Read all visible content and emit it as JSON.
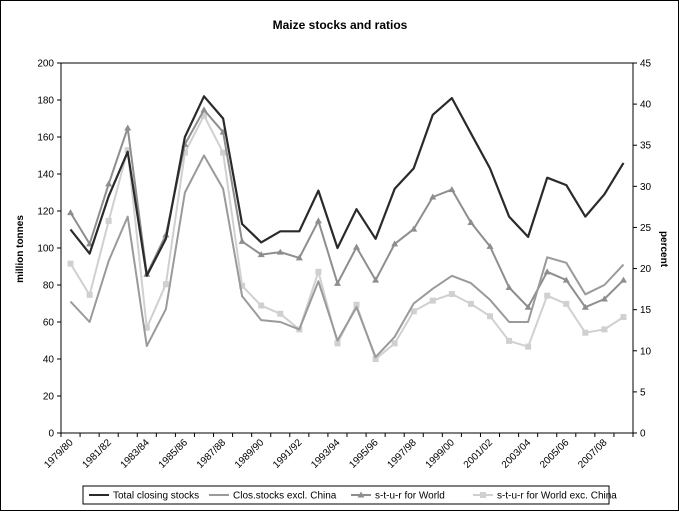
{
  "chart_data": {
    "type": "line",
    "title": "Maize stocks and ratios",
    "ylabel": "million tonnes",
    "y2label": "percent",
    "ylim": [
      0,
      200
    ],
    "y2lim": [
      0,
      45
    ],
    "yticks": [
      0,
      20,
      40,
      60,
      80,
      100,
      120,
      140,
      160,
      180,
      200
    ],
    "y2ticks": [
      0,
      5,
      10,
      15,
      20,
      25,
      30,
      35,
      40,
      45
    ],
    "grid": false,
    "legend_position": "bottom",
    "colors": {
      "total": "#2a2a2a",
      "excl": "#9a9a9a",
      "stur": "#8e8e8e",
      "stur_exc": "#d0d0d0"
    },
    "x": [
      "1979/80",
      "1980/81",
      "1981/82",
      "1982/83",
      "1983/84",
      "1984/85",
      "1985/86",
      "1986/87",
      "1987/88",
      "1988/89",
      "1989/90",
      "1990/91",
      "1991/92",
      "1992/93",
      "1993/94",
      "1994/95",
      "1995/96",
      "1996/97",
      "1997/98",
      "1998/99",
      "1999/00",
      "2000/01",
      "2001/02",
      "2002/03",
      "2003/04",
      "2004/05",
      "2005/06",
      "2006/07",
      "2007/08",
      "2008/09"
    ],
    "xticks_shown": [
      "1979/80",
      "1981/82",
      "1983/84",
      "1985/86",
      "1987/88",
      "1989/90",
      "1991/92",
      "1993/94",
      "1995/96",
      "1997/98",
      "1999/00",
      "2001/02",
      "2003/04",
      "2005/06",
      "2007/08"
    ],
    "series": [
      {
        "name": "Total closing stocks",
        "axis": "left",
        "marker": "none",
        "color_key": "total",
        "values": [
          110,
          97,
          128,
          152,
          85,
          105,
          160,
          182,
          170,
          113,
          103,
          109,
          109,
          131,
          100,
          121,
          105,
          132,
          143,
          172,
          181,
          162,
          143,
          117,
          106,
          138,
          134,
          117,
          129,
          146
        ]
      },
      {
        "name": "Clos.stocks excl. China",
        "axis": "left",
        "marker": "none",
        "color_key": "excl",
        "values": [
          71,
          60,
          93,
          117,
          47,
          67,
          130,
          150,
          132,
          74,
          61,
          60,
          56,
          82,
          50,
          68,
          41,
          52,
          70,
          78,
          85,
          81,
          72,
          60,
          60,
          95,
          92,
          75,
          80,
          91
        ]
      },
      {
        "name": "s-t-u-r for World",
        "axis": "right",
        "marker": "triangle",
        "color_key": "stur",
        "values": [
          26.8,
          23.0,
          30.3,
          37.1,
          19.3,
          24.1,
          35.1,
          39.3,
          36.6,
          23.3,
          21.7,
          22.0,
          21.3,
          25.8,
          18.2,
          22.6,
          18.6,
          23.0,
          24.8,
          28.7,
          29.6,
          25.6,
          22.7,
          17.7,
          15.3,
          19.6,
          18.6,
          15.3,
          16.3,
          18.6
        ]
      },
      {
        "name": "s-t-u-r for World exc. China",
        "axis": "right",
        "marker": "square",
        "color_key": "stur_exc",
        "values": [
          20.6,
          16.8,
          25.8,
          34.4,
          12.8,
          18.1,
          34.1,
          38.6,
          34.1,
          17.9,
          15.5,
          14.5,
          12.6,
          19.6,
          10.9,
          15.6,
          9.0,
          10.9,
          14.8,
          16.1,
          16.9,
          15.7,
          14.2,
          11.2,
          10.5,
          16.7,
          15.7,
          12.2,
          12.6,
          14.1
        ]
      }
    ]
  }
}
